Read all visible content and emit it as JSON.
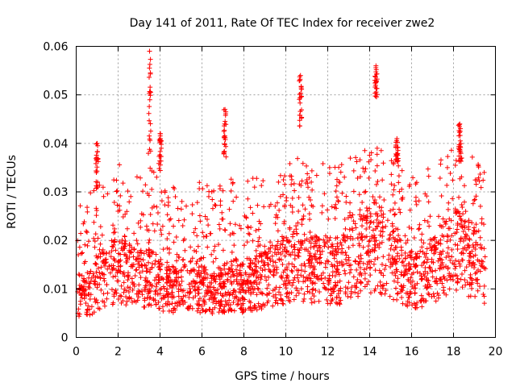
{
  "chart_data": {
    "type": "scatter",
    "title": "Day 141 of 2011, Rate Of TEC Index for receiver zwe2",
    "xlabel": "GPS time / hours",
    "ylabel": "ROTI / TECUs",
    "xlim": [
      0,
      20
    ],
    "ylim": [
      0,
      0.06
    ],
    "x_ticks": [
      "0",
      "2",
      "4",
      "6",
      "8",
      "10",
      "12",
      "14",
      "16",
      "18",
      "20"
    ],
    "y_ticks": [
      "0",
      "0.01",
      "0.02",
      "0.03",
      "0.04",
      "0.05",
      "0.06"
    ],
    "grid": true,
    "marker": "+",
    "color": "#ff0000",
    "series": [
      {
        "name": "ROTI",
        "profile": [
          [
            0.0,
            0.009
          ],
          [
            0.5,
            0.008
          ],
          [
            1.0,
            0.011
          ],
          [
            1.5,
            0.013
          ],
          [
            2.0,
            0.014
          ],
          [
            2.5,
            0.013
          ],
          [
            3.0,
            0.012
          ],
          [
            3.5,
            0.013
          ],
          [
            4.0,
            0.011
          ],
          [
            4.5,
            0.01
          ],
          [
            5.0,
            0.011
          ],
          [
            5.5,
            0.011
          ],
          [
            6.0,
            0.01
          ],
          [
            6.5,
            0.009
          ],
          [
            7.0,
            0.01
          ],
          [
            7.5,
            0.011
          ],
          [
            8.0,
            0.01
          ],
          [
            8.5,
            0.011
          ],
          [
            9.0,
            0.012
          ],
          [
            9.5,
            0.013
          ],
          [
            10.0,
            0.014
          ],
          [
            10.5,
            0.015
          ],
          [
            11.0,
            0.014
          ],
          [
            11.5,
            0.014
          ],
          [
            12.0,
            0.014
          ],
          [
            12.5,
            0.013
          ],
          [
            13.0,
            0.016
          ],
          [
            13.5,
            0.017
          ],
          [
            14.0,
            0.018
          ],
          [
            14.5,
            0.018
          ],
          [
            15.0,
            0.016
          ],
          [
            15.5,
            0.014
          ],
          [
            16.0,
            0.012
          ],
          [
            16.5,
            0.012
          ],
          [
            17.0,
            0.014
          ],
          [
            17.5,
            0.016
          ],
          [
            18.0,
            0.018
          ],
          [
            18.5,
            0.018
          ],
          [
            19.0,
            0.015
          ],
          [
            19.5,
            0.013
          ]
        ],
        "spikes": [
          {
            "x": 1.0,
            "y_min": 0.03,
            "y_max": 0.04
          },
          {
            "x": 3.5,
            "y_min": 0.036,
            "y_max": 0.059
          },
          {
            "x": 4.0,
            "y_min": 0.034,
            "y_max": 0.042
          },
          {
            "x": 7.1,
            "y_min": 0.037,
            "y_max": 0.047
          },
          {
            "x": 10.7,
            "y_min": 0.043,
            "y_max": 0.054
          },
          {
            "x": 14.3,
            "y_min": 0.049,
            "y_max": 0.056
          },
          {
            "x": 15.3,
            "y_min": 0.036,
            "y_max": 0.041
          },
          {
            "x": 18.3,
            "y_min": 0.036,
            "y_max": 0.044
          }
        ]
      }
    ]
  }
}
